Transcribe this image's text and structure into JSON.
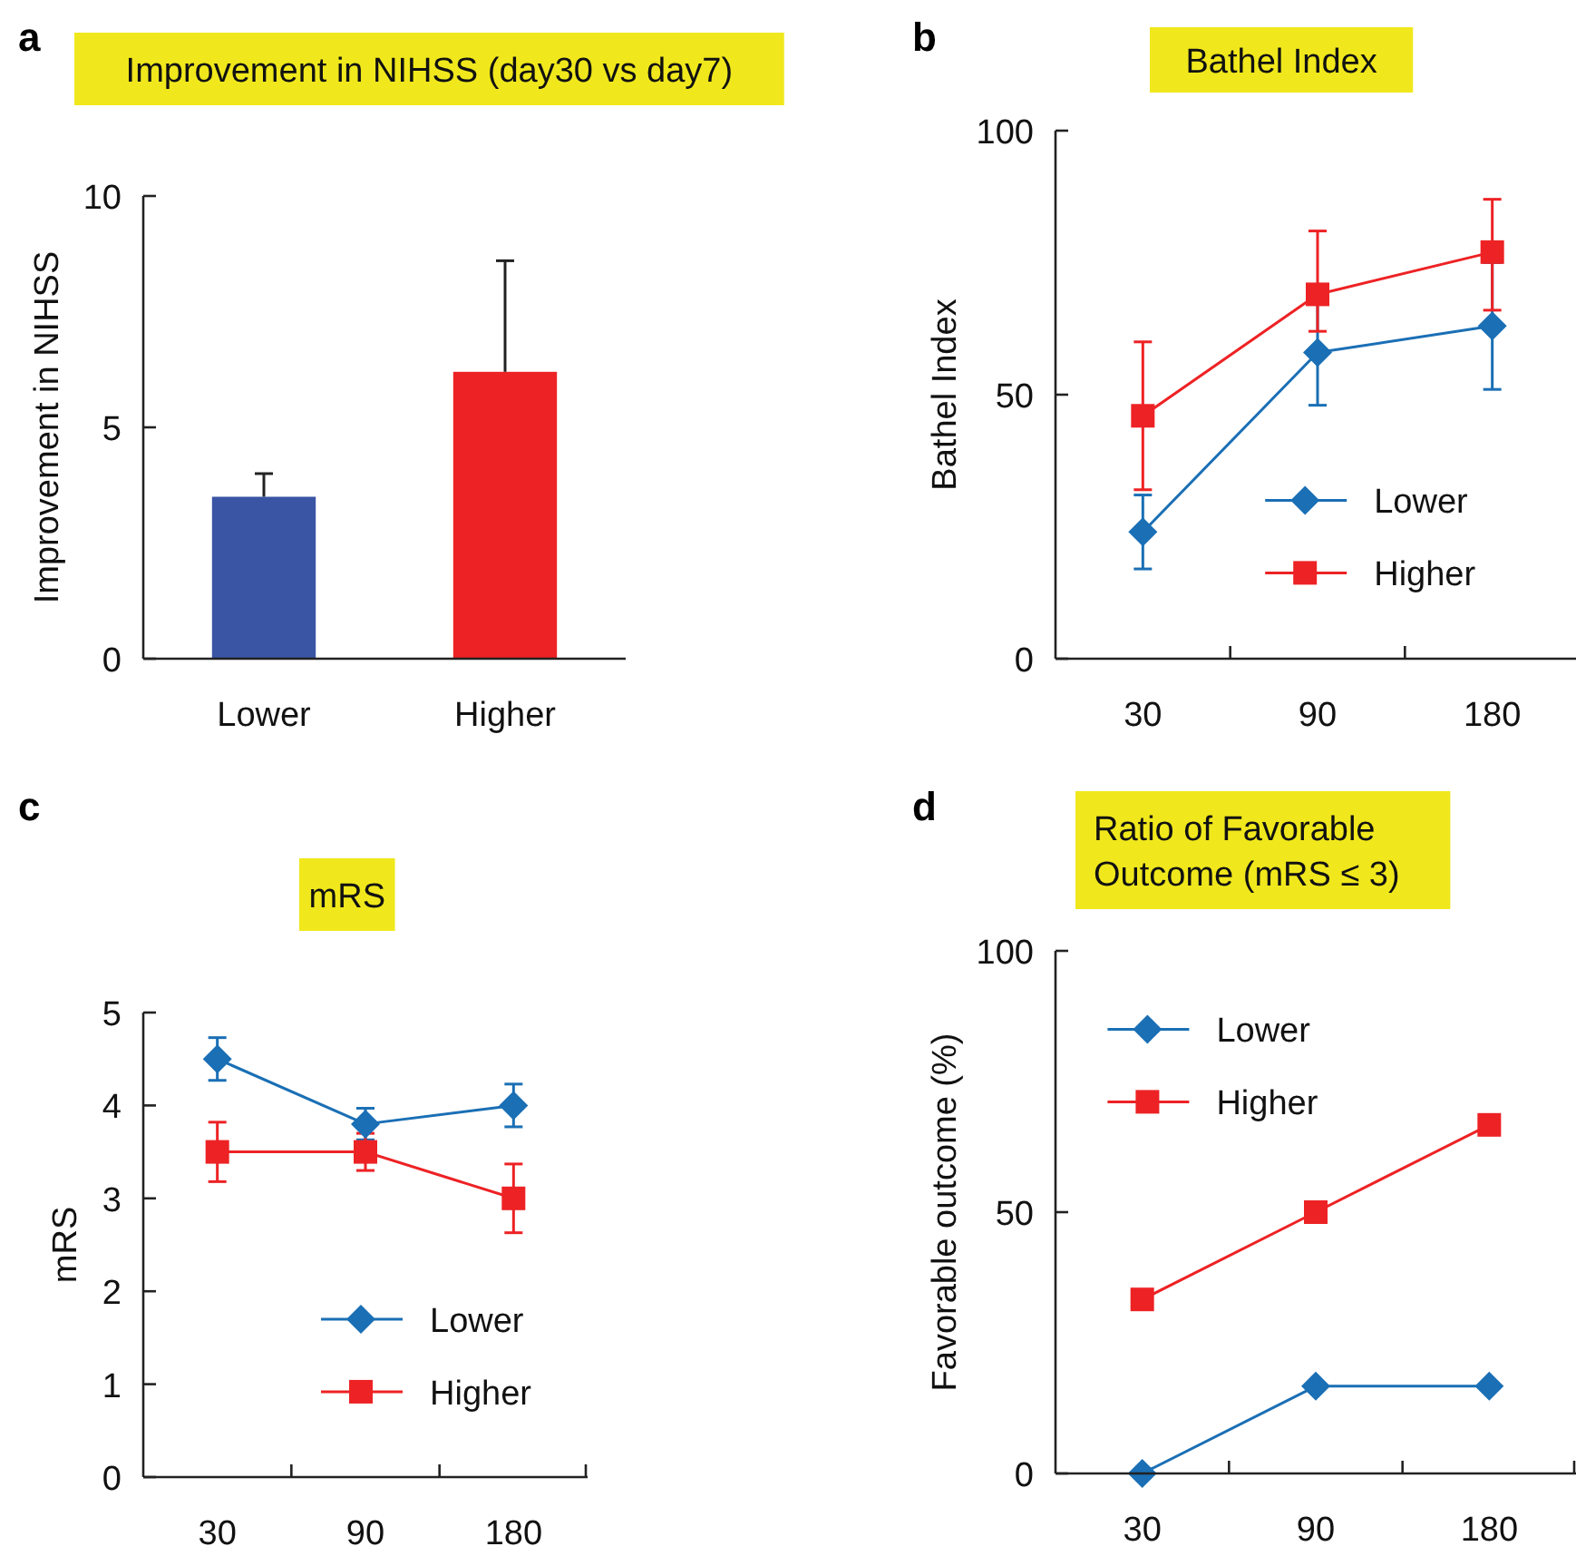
{
  "chart_data": [
    {
      "type": "bar",
      "title": "Improvement in NIHSS (day30 vs day7)",
      "annotations": [
        "a"
      ],
      "ylabel": "Improvement in NIHSS",
      "categories": [
        "Lower",
        "Higher"
      ],
      "values": [
        3.5,
        6.2
      ],
      "colors": [
        "#3a55a4",
        "#ed2224"
      ],
      "errors": [
        [
          3.5,
          4.0
        ],
        [
          6.2,
          8.6
        ]
      ],
      "ylim": [
        0,
        10
      ],
      "yticks": [
        0,
        5,
        10
      ],
      "grid": false,
      "legend": false
    },
    {
      "type": "line",
      "title": "Bathel Index",
      "annotations": [
        "b"
      ],
      "ylabel": "Bathel Index",
      "categories": [
        "30",
        "90",
        "180"
      ],
      "ylim": [
        0,
        100
      ],
      "yticks": [
        0,
        50,
        100
      ],
      "grid": false,
      "legend": "bottom right",
      "series": [
        {
          "name": "Lower",
          "color": "#1a6fb5",
          "marker": "diamond",
          "values": [
            24,
            58,
            63
          ],
          "errors": [
            7,
            10,
            12
          ]
        },
        {
          "name": "Higher",
          "color": "#ed2224",
          "marker": "square",
          "values": [
            46,
            69,
            77
          ],
          "errors": [
            14,
            [
              62,
              81
            ],
            [
              66,
              87
            ]
          ]
        }
      ]
    },
    {
      "type": "line",
      "title": "mRS",
      "annotations": [
        "c"
      ],
      "ylabel": "mRS",
      "categories": [
        "30",
        "90",
        "180"
      ],
      "ylim": [
        0,
        5
      ],
      "yticks": [
        0,
        1,
        2,
        3,
        4,
        5
      ],
      "grid": false,
      "legend": "bottom",
      "series": [
        {
          "name": "Lower",
          "color": "#1a6fb5",
          "marker": "diamond",
          "values": [
            4.5,
            3.8,
            4.0
          ],
          "errors": [
            0.23,
            0.17,
            0.23
          ]
        },
        {
          "name": "Higher",
          "color": "#ed2224",
          "marker": "square",
          "values": [
            3.5,
            3.5,
            3.0
          ],
          "errors": [
            0.32,
            0.2,
            0.37
          ]
        }
      ]
    },
    {
      "type": "line",
      "title": "Ratio of Favorable\nOutcome (mRS ≤ 3)",
      "annotations": [
        "d"
      ],
      "ylabel": "Favorable outcome (%)",
      "categories": [
        "30",
        "90",
        "180"
      ],
      "ylim": [
        0,
        100
      ],
      "yticks": [
        0,
        50,
        100
      ],
      "grid": false,
      "legend": "top left",
      "series": [
        {
          "name": "Lower",
          "color": "#1a6fb5",
          "marker": "diamond",
          "values": [
            0,
            16.7,
            16.7
          ]
        },
        {
          "name": "Higher",
          "color": "#ed2224",
          "marker": "square",
          "values": [
            33.3,
            50,
            66.7
          ]
        }
      ]
    }
  ]
}
